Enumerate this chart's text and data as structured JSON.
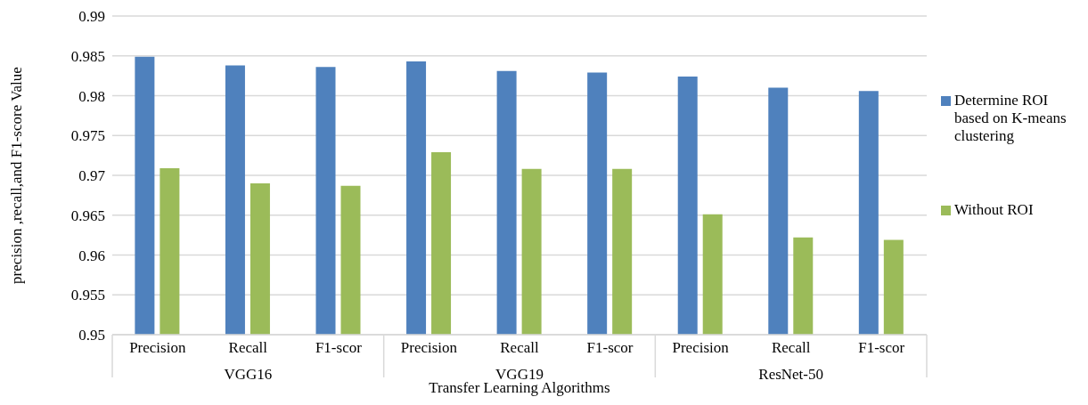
{
  "chart_data": {
    "type": "bar",
    "xlabel": "Transfer Learning Algorithms",
    "ylabel": "precision ,recall,and F1-score Value",
    "categories": [
      "Precision",
      "Recall",
      "F1-scor",
      "Precision",
      "Recall",
      "F1-scor",
      "Precision",
      "Recall",
      "F1-scor"
    ],
    "annotations": [
      "VGG16",
      "VGG19",
      "ResNet-50"
    ],
    "series": [
      {
        "name": "Determine ROI based on K-means clustering",
        "color": "#4f81bd",
        "values": [
          0.9849,
          0.9838,
          0.9836,
          0.9843,
          0.9831,
          0.9829,
          0.9824,
          0.981,
          0.9806
        ]
      },
      {
        "name": "Without ROI",
        "color": "#9bbb59",
        "values": [
          0.9709,
          0.969,
          0.9687,
          0.9729,
          0.9708,
          0.9708,
          0.9651,
          0.9622,
          0.9619
        ]
      }
    ],
    "ylim": [
      0.95,
      0.99
    ],
    "yticks": [
      0.95,
      0.955,
      0.96,
      0.965,
      0.97,
      0.975,
      0.98,
      0.985,
      0.99
    ],
    "grid": "y",
    "legend": "right"
  }
}
